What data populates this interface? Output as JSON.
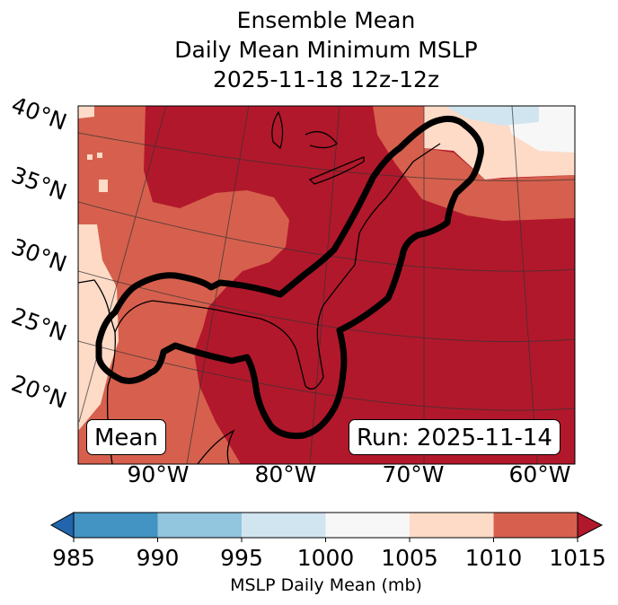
{
  "title": {
    "line1": "Ensemble Mean",
    "line2": "Daily Mean Minimum MSLP",
    "line3": "2025-11-18 12z-12z"
  },
  "map": {
    "lat_labels": [
      "40°N",
      "35°N",
      "30°N",
      "25°N",
      "20°N"
    ],
    "lon_labels": [
      "90°W",
      "80°W",
      "70°W",
      "60°W"
    ],
    "mean_label": "Mean",
    "run_label": "Run: 2025-11-14"
  },
  "colorbar": {
    "ticks": [
      "985",
      "990",
      "995",
      "1000",
      "1005",
      "1010",
      "1015"
    ],
    "colors": [
      "#4393c3",
      "#92c5de",
      "#d1e5f0",
      "#f7f7f7",
      "#fddbc7",
      "#d6604d"
    ],
    "under_color": "#2166ac",
    "over_color": "#b2182b",
    "label": "MSLP Daily Mean (mb)"
  }
}
